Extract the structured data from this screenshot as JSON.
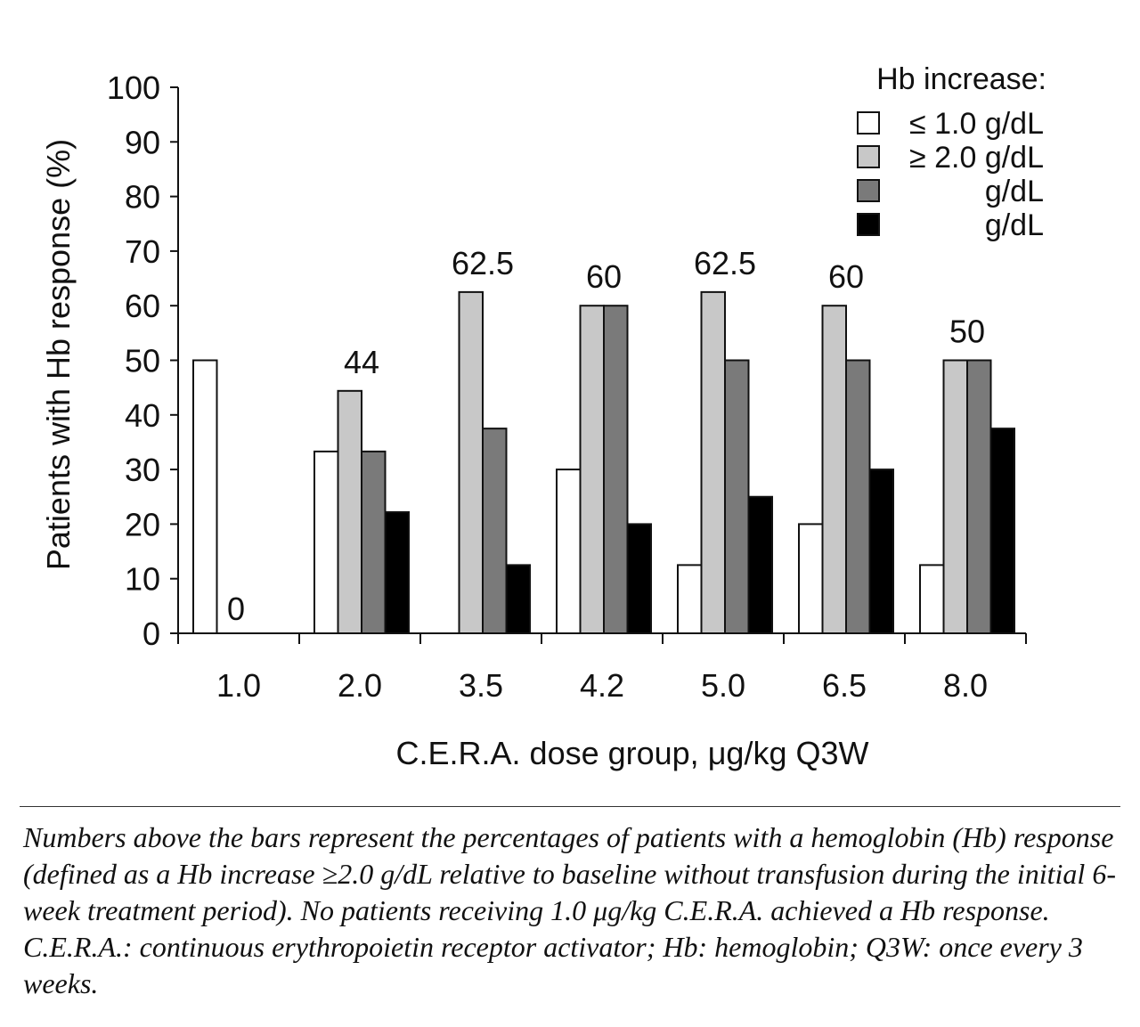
{
  "chart_data": {
    "type": "bar",
    "title": "",
    "xlabel": "C.E.R.A. dose group, μg/kg Q3W",
    "ylabel": "Patients with Hb response (%)",
    "ylim": [
      0,
      100
    ],
    "yticks": [
      "0",
      "10",
      "20",
      "30",
      "40",
      "50",
      "60",
      "70",
      "80",
      "90",
      "100"
    ],
    "categories": [
      "1.0",
      "2.0",
      "3.5",
      "4.2",
      "5.0",
      "6.5",
      "8.0"
    ],
    "legend": {
      "title": "Hb increase:",
      "placement": "top-right",
      "entries": [
        "≤ 1.0 g/dL",
        "≥ 2.0 g/dL",
        "g/dL",
        "g/dL"
      ]
    },
    "series": [
      {
        "label": "≤ 1.0 g/dL",
        "color": "#ffffff",
        "values": [
          50,
          33.3,
          0,
          30,
          12.5,
          20,
          12.5
        ]
      },
      {
        "label": "≥ 2.0 g/dL",
        "color": "#c8c8c8",
        "values": [
          0,
          44.4,
          62.5,
          60,
          62.5,
          60,
          50
        ]
      },
      {
        "label": "g/dL",
        "color": "#7a7a7a",
        "values": [
          0,
          33.3,
          37.5,
          60,
          50,
          50,
          50
        ]
      },
      {
        "label": "g/dL",
        "color": "#000000",
        "values": [
          0,
          22.2,
          12.5,
          20,
          25,
          30,
          37.5
        ]
      }
    ],
    "annotations": [
      "0",
      "44",
      "62.5",
      "60",
      "62.5",
      "60",
      "50"
    ],
    "grid": false
  },
  "caption": "Numbers above the bars represent the percentages of patients with a hemoglobin (Hb) response (defined as a Hb increase ≥2.0 g/dL relative to baseline without transfusion during the initial 6-week treatment period). No patients receiving 1.0 μg/kg C.E.R.A. achieved a Hb response. C.E.R.A.: continuous erythropoietin receptor activator; Hb: hemoglobin; Q3W: once every 3 weeks."
}
